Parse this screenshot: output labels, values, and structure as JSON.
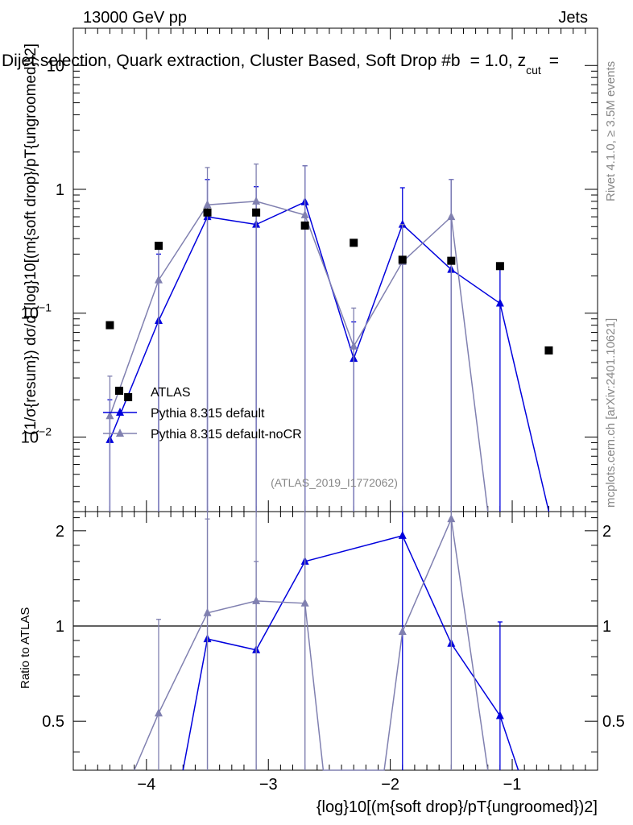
{
  "header": {
    "energy_label": "13000 GeV pp",
    "process_label": "Jets",
    "selection_title": "Dijet selection, Quark extraction, Cluster Based, Soft Drop #b",
    "selection_title_tail": "= 1.0, z",
    "selection_title_sub": "cut",
    "selection_title_end": "="
  },
  "side_labels": {
    "rivet": "Rivet 4.1.0, ≥ 3.5M events",
    "mcplots": "mcplots.cern.ch [arXiv:2401.10621]"
  },
  "analysis_id": "(ATLAS_2019_I1772062)",
  "axes": {
    "main_ylabel": "(1/σ{resum}) dσ/d {log}10[(m{soft drop}/pT{ungroomed})2]",
    "ratio_ylabel": "Ratio to ATLAS",
    "xlabel": "{log}10[(m{soft drop}/pT{ungroomed})2]",
    "x_ticks": [
      "−4",
      "−3",
      "−2",
      "−1"
    ],
    "main_y_ticks": [
      "10",
      "1",
      "10−1",
      "10−2"
    ],
    "ratio_y_ticks": [
      "2",
      "1",
      "0.5"
    ]
  },
  "legend": {
    "atlas": "ATLAS",
    "default": "Pythia 8.315 default",
    "nocr": "Pythia 8.315 default-noCR"
  },
  "colors": {
    "atlas": "#000000",
    "default": "#0000dd",
    "nocr": "#8080b0"
  },
  "chart_data": {
    "type": "line",
    "title": "Dijet selection, Quark extraction, Cluster Based, Soft Drop",
    "xlim": [
      -4.6,
      -0.3
    ],
    "ylim": [
      0.0025,
      20
    ],
    "yscale": "log",
    "ratio_ylim": [
      0.35,
      2.3
    ],
    "ratio_yscale": "log",
    "series": [
      {
        "name": "ATLAS",
        "style": "marker",
        "x": [
          -4.3,
          -4.15,
          -3.9,
          -3.5,
          -3.1,
          -2.7,
          -2.3,
          -1.9,
          -1.5,
          -1.1,
          -0.7
        ],
        "values": [
          0.08,
          0.021,
          0.35,
          0.65,
          0.65,
          0.51,
          0.37,
          0.27,
          0.265,
          0.24,
          0.05
        ]
      },
      {
        "name": "Pythia 8.315 default",
        "style": "line-triangle",
        "x": [
          -4.3,
          -3.9,
          -3.5,
          -3.1,
          -2.7,
          -2.3,
          -1.9,
          -1.5,
          -1.1,
          -0.7
        ],
        "values": [
          0.0095,
          0.087,
          0.6,
          0.52,
          0.79,
          0.043,
          0.52,
          0.225,
          0.12,
          0.0025
        ],
        "err_high": [
          0.02,
          0.3,
          1.2,
          1.05,
          1.55,
          0.085,
          1.03,
          1.2,
          0.24,
          0
        ],
        "ratio_x": [
          -3.7,
          -3.5,
          -3.1,
          -2.7,
          -1.9,
          -1.5,
          -1.1,
          -0.95
        ],
        "ratio": [
          0.35,
          0.91,
          0.84,
          1.6,
          1.93,
          0.88,
          0.52,
          0.35
        ],
        "ratio_err_high": [
          null,
          null,
          null,
          null,
          2.3,
          null,
          1.03,
          null
        ]
      },
      {
        "name": "Pythia 8.315 default-noCR",
        "style": "line-triangle",
        "x": [
          -4.3,
          -3.9,
          -3.5,
          -3.1,
          -2.7,
          -2.3,
          -1.9,
          -1.5,
          -1.2
        ],
        "values": [
          0.0148,
          0.185,
          0.75,
          0.8,
          0.62,
          0.054,
          0.26,
          0.6,
          0.0025
        ],
        "err_high": [
          0.031,
          0.37,
          1.5,
          1.6,
          1.55,
          0.11,
          0.52,
          1.2,
          0
        ],
        "ratio_x": [
          -4.1,
          -3.9,
          -3.5,
          -3.1,
          -2.7,
          -2.55,
          -2.05,
          -1.9,
          -1.5,
          -1.2
        ],
        "ratio": [
          0.35,
          0.53,
          1.1,
          1.2,
          1.18,
          0.35,
          0.35,
          0.96,
          2.18,
          0.35
        ],
        "ratio_err_high": [
          null,
          1.05,
          2.18,
          1.6,
          2.3,
          null,
          null,
          null,
          2.3,
          null
        ]
      }
    ]
  }
}
